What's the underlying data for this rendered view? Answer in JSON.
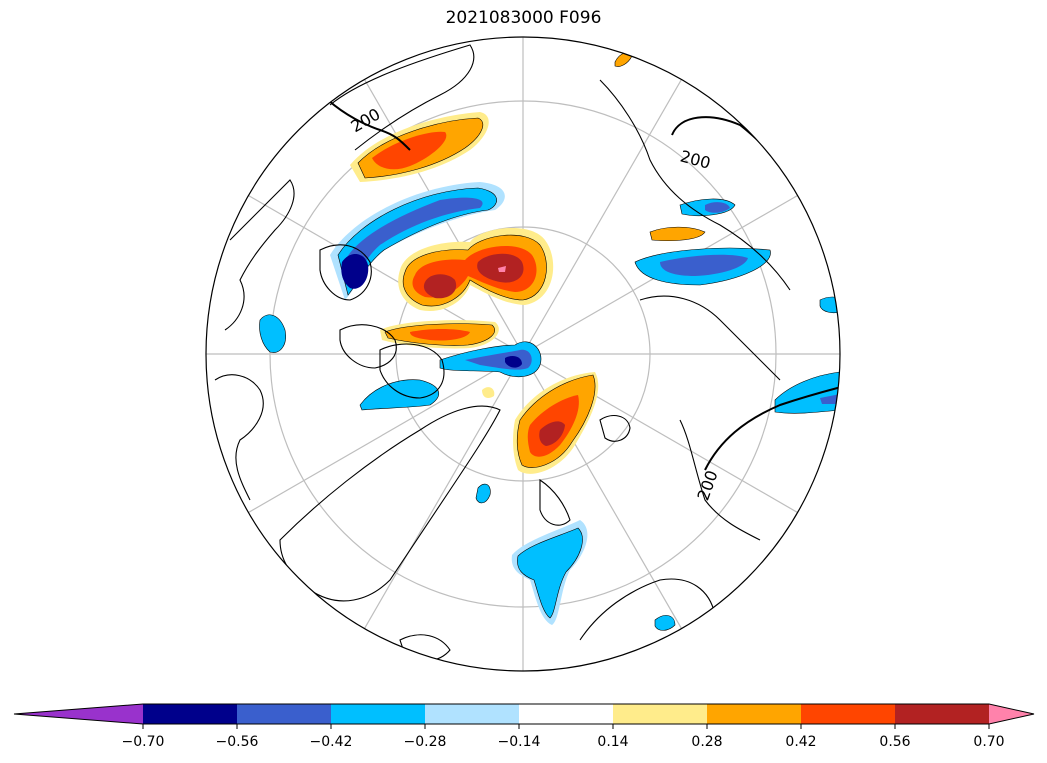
{
  "title": "2021083000 F096",
  "contour_labels": [
    "200",
    "200",
    "200"
  ],
  "colorbar": {
    "ticks": [
      "−0.70",
      "−0.56",
      "−0.42",
      "−0.28",
      "−0.14",
      "0.14",
      "0.28",
      "0.42",
      "0.56",
      "0.70"
    ],
    "colors": [
      "#9932cc",
      "#00008b",
      "#3a5fcd",
      "#00bfff",
      "#b0e2ff",
      "#ffffff",
      "#ffec8b",
      "#ffa500",
      "#ff4500",
      "#b22222",
      "#ff82ab"
    ]
  },
  "palette": {
    "land_outline": "#000000",
    "graticule": "#bebebe",
    "frame": "#000000"
  }
}
